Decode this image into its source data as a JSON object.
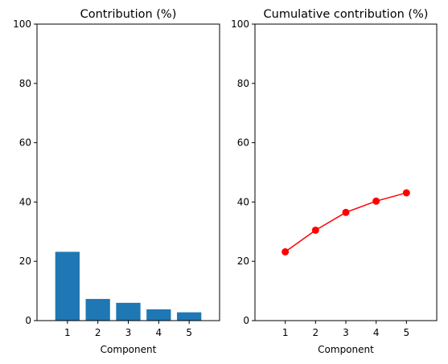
{
  "chart_data": [
    {
      "type": "bar",
      "title": "Contribution (%)",
      "xlabel": "Component",
      "ylabel": "",
      "categories": [
        1,
        2,
        3,
        4,
        5
      ],
      "values": [
        23.2,
        7.3,
        6.0,
        3.8,
        2.8
      ],
      "xlim": [
        0,
        6
      ],
      "ylim": [
        0,
        100
      ],
      "yticks": [
        0,
        20,
        40,
        60,
        80,
        100
      ],
      "xticks": [
        1,
        2,
        3,
        4,
        5
      ],
      "grid": false,
      "bar_color": "#1f77b4"
    },
    {
      "type": "line",
      "title": "Cumulative contribution (%)",
      "xlabel": "Component",
      "ylabel": "",
      "x": [
        1,
        2,
        3,
        4,
        5
      ],
      "values": [
        23.2,
        30.5,
        36.5,
        40.3,
        43.1
      ],
      "xlim": [
        0,
        6
      ],
      "ylim": [
        0,
        100
      ],
      "yticks": [
        0,
        20,
        40,
        60,
        80,
        100
      ],
      "xticks": [
        1,
        2,
        3,
        4,
        5
      ],
      "grid": false,
      "line_color": "#ff0000",
      "marker": "circle"
    }
  ]
}
